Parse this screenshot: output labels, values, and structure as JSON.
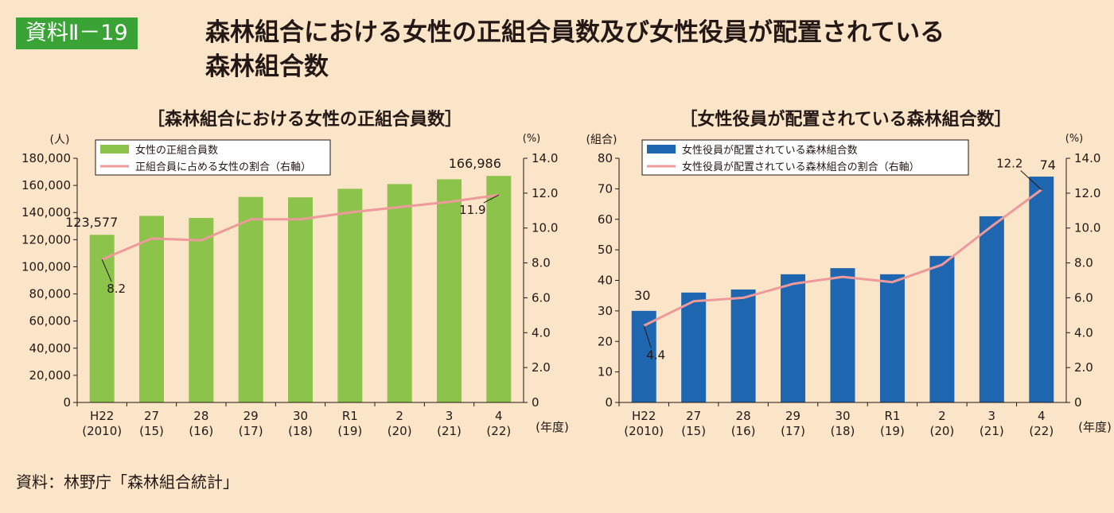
{
  "badge": "資料Ⅱ－19",
  "title_lines": [
    "森林組合における女性の正組合員数及び女性役員が配置されている",
    "森林組合数"
  ],
  "source": "資料：林野庁「森林組合統計」",
  "colors": {
    "background": "#fbe5c8",
    "badge": "#3aa335",
    "green_bar": "#8cc34b",
    "blue_bar": "#1f66b1",
    "line": "#ee9a9a"
  },
  "x_unit_label": "(年度)",
  "chart_data": [
    {
      "type": "bar",
      "title": "［森林組合における女性の正組合員数］",
      "categories": [
        [
          "H22",
          "(2010)"
        ],
        [
          "27",
          "(15)"
        ],
        [
          "28",
          "(16)"
        ],
        [
          "29",
          "(17)"
        ],
        [
          "30",
          "(18)"
        ],
        [
          "R1",
          "(19)"
        ],
        [
          "2",
          "(20)"
        ],
        [
          "3",
          "(21)"
        ],
        [
          "4",
          "(22)"
        ]
      ],
      "ylabel_left": "(人)",
      "ylabel_right": "(%)",
      "ylim_left": [
        0,
        180000
      ],
      "ylim_right": [
        0,
        14.0
      ],
      "yticks_left": [
        "0",
        "20,000",
        "40,000",
        "60,000",
        "80,000",
        "100,000",
        "120,000",
        "140,000",
        "160,000",
        "180,000"
      ],
      "yticks_right": [
        "0",
        "2.0",
        "4.0",
        "6.0",
        "8.0",
        "10.0",
        "12.0",
        "14.0"
      ],
      "series": [
        {
          "name": "女性の正組合員数",
          "type": "bar",
          "axis": "left",
          "color": "#8cc34b",
          "values": [
            123577,
            137500,
            136000,
            151500,
            151200,
            157500,
            161000,
            164500,
            166986
          ]
        },
        {
          "name": "正組合員に占める女性の割合（右軸）",
          "type": "line",
          "axis": "right",
          "color": "#ee9a9a",
          "values": [
            8.2,
            9.4,
            9.3,
            10.5,
            10.5,
            10.9,
            11.2,
            11.5,
            11.9
          ]
        }
      ],
      "annotations": {
        "bar_first": "123,577",
        "bar_last": "166,986",
        "line_first": "8.2",
        "line_last": "11.9"
      },
      "legend_position": "top-left",
      "grid": false
    },
    {
      "type": "bar",
      "title": "［女性役員が配置されている森林組合数］",
      "categories": [
        [
          "H22",
          "(2010)"
        ],
        [
          "27",
          "(15)"
        ],
        [
          "28",
          "(16)"
        ],
        [
          "29",
          "(17)"
        ],
        [
          "30",
          "(18)"
        ],
        [
          "R1",
          "(19)"
        ],
        [
          "2",
          "(20)"
        ],
        [
          "3",
          "(21)"
        ],
        [
          "4",
          "(22)"
        ]
      ],
      "ylabel_left": "(組合)",
      "ylabel_right": "(%)",
      "ylim_left": [
        0,
        80
      ],
      "ylim_right": [
        0,
        14.0
      ],
      "yticks_left": [
        "0",
        "10",
        "20",
        "30",
        "40",
        "50",
        "60",
        "70",
        "80"
      ],
      "yticks_right": [
        "0",
        "2.0",
        "4.0",
        "6.0",
        "8.0",
        "10.0",
        "12.0",
        "14.0"
      ],
      "series": [
        {
          "name": "女性役員が配置されている森林組合数",
          "type": "bar",
          "axis": "left",
          "color": "#1f66b1",
          "values": [
            30,
            36,
            37,
            42,
            44,
            42,
            48,
            61,
            74
          ]
        },
        {
          "name": "女性役員が配置されている森林組合の割合（右軸）",
          "type": "line",
          "axis": "right",
          "color": "#ee9a9a",
          "values": [
            4.4,
            5.8,
            6.0,
            6.8,
            7.2,
            6.9,
            7.9,
            10.1,
            12.2
          ]
        }
      ],
      "annotations": {
        "bar_first": "30",
        "bar_last": "74",
        "line_first": "4.4",
        "line_last": "12.2"
      },
      "legend_position": "top-left",
      "grid": false
    }
  ]
}
